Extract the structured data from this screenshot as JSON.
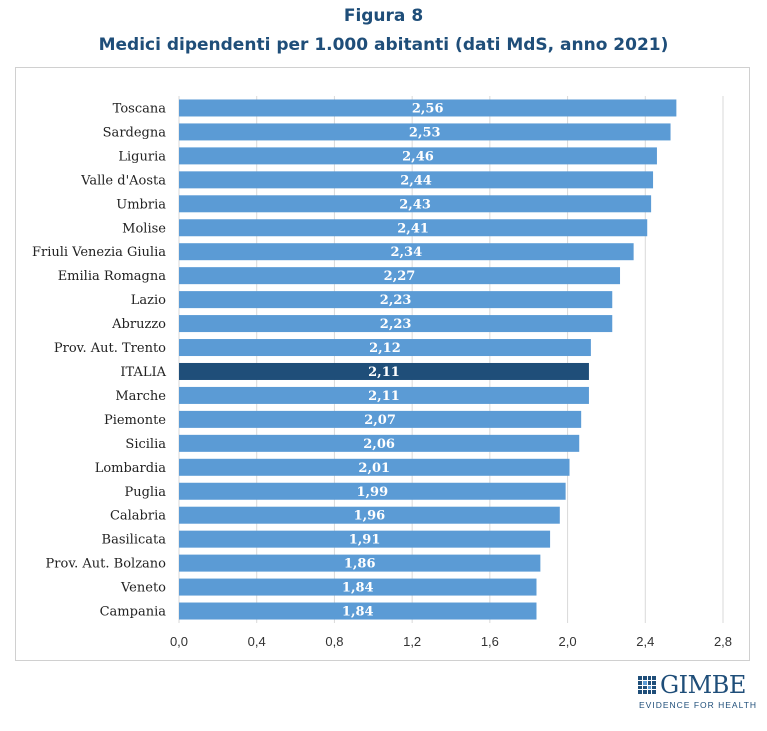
{
  "chart_data": {
    "type": "bar",
    "orientation": "horizontal",
    "title": "Figura 8",
    "subtitle": "Medici dipendenti per 1.000 abitanti (dati MdS, anno 2021)",
    "categories": [
      "Toscana",
      "Sardegna",
      "Liguria",
      "Valle d'Aosta",
      "Umbria",
      "Molise",
      "Friuli Venezia Giulia",
      "Emilia Romagna",
      "Lazio",
      "Abruzzo",
      "Prov. Aut. Trento",
      "ITALIA",
      "Marche",
      "Piemonte",
      "Sicilia",
      "Lombardia",
      "Puglia",
      "Calabria",
      "Basilicata",
      "Prov. Aut. Bolzano",
      "Veneto",
      "Campania"
    ],
    "values": [
      2.56,
      2.53,
      2.46,
      2.44,
      2.43,
      2.41,
      2.34,
      2.27,
      2.23,
      2.23,
      2.12,
      2.11,
      2.11,
      2.07,
      2.06,
      2.01,
      1.99,
      1.96,
      1.91,
      1.86,
      1.84,
      1.84
    ],
    "value_labels": [
      "2,56",
      "2,53",
      "2,46",
      "2,44",
      "2,43",
      "2,41",
      "2,34",
      "2,27",
      "2,23",
      "2,23",
      "2,12",
      "2,11",
      "2,11",
      "2,07",
      "2,06",
      "2,01",
      "1,99",
      "1,96",
      "1,91",
      "1,86",
      "1,84",
      "1,84"
    ],
    "highlight_category": "ITALIA",
    "xlim": [
      0,
      2.8
    ],
    "x_ticks": [
      0,
      0.4,
      0.8,
      1.2,
      1.6,
      2.0,
      2.4,
      2.8
    ],
    "x_tick_labels": [
      "0,0",
      "0,4",
      "0,8",
      "1,2",
      "1,6",
      "2,0",
      "2,4",
      "2,8"
    ],
    "grid": "vertical",
    "legend": "none",
    "colors": {
      "bar": "#5b9bd5",
      "highlight": "#1f4e79",
      "grid": "#d9d9d9",
      "title": "#1f4e79"
    }
  },
  "logo": {
    "name": "GIMBE",
    "tagline": "EVIDENCE FOR HEALTH"
  }
}
